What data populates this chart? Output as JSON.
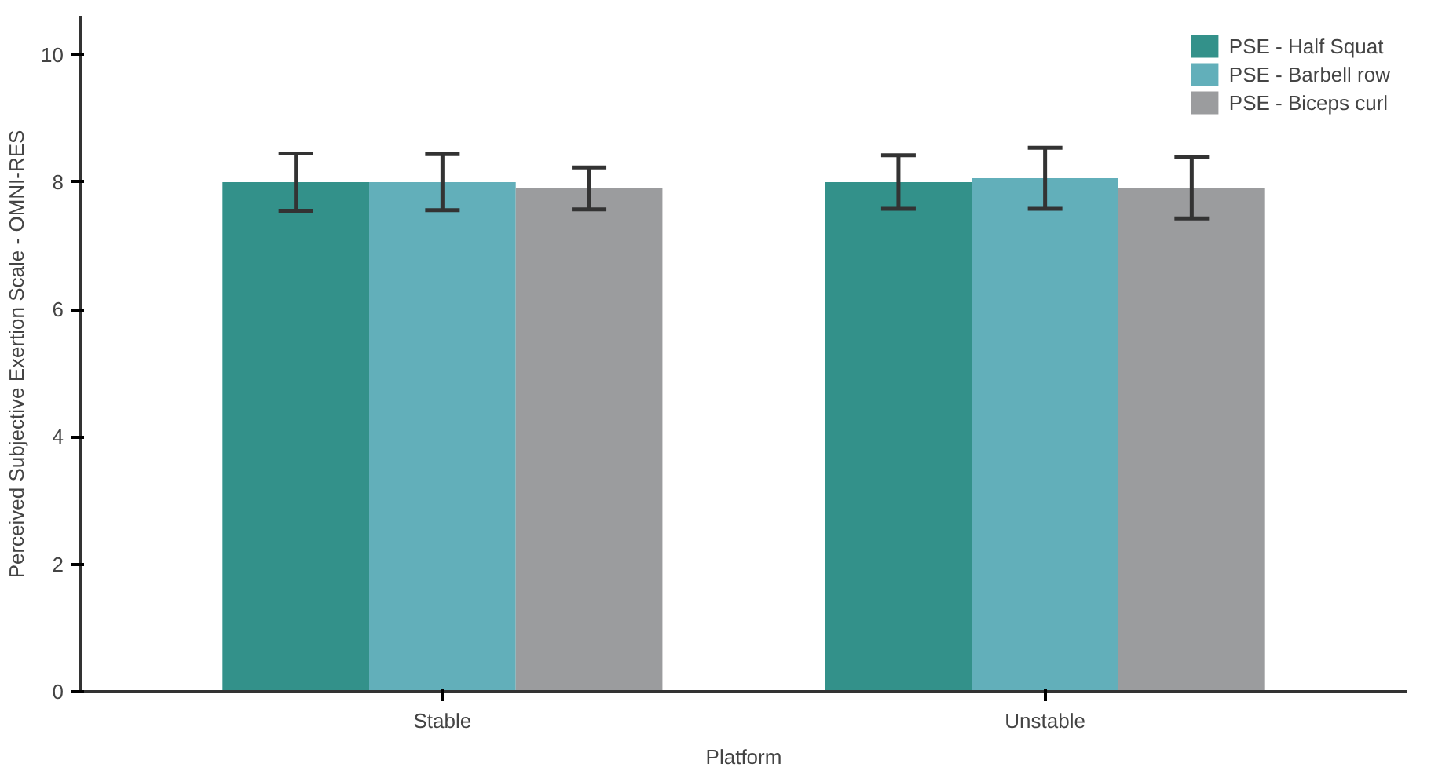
{
  "chart_data": {
    "type": "bar",
    "xlabel": "Platform",
    "ylabel": "Perceived Subjective Exertion Scale - OMNI-RES",
    "categories": [
      "Stable",
      "Unstable"
    ],
    "series": [
      {
        "name": "PSE - Half Squat",
        "color": "#33918a",
        "values": [
          8.0,
          8.0
        ],
        "errors": [
          0.45,
          0.42
        ]
      },
      {
        "name": "PSE - Barbell row",
        "color": "#62afba",
        "values": [
          8.0,
          8.06
        ],
        "errors": [
          0.44,
          0.48
        ]
      },
      {
        "name": "PSE - Biceps curl",
        "color": "#9b9c9e",
        "values": [
          7.9,
          7.91
        ],
        "errors": [
          0.33,
          0.48
        ]
      }
    ],
    "ylim": [
      0,
      10.6
    ],
    "yticks": [
      0,
      2,
      4,
      6,
      8,
      10
    ],
    "grid": false,
    "legend": "top right"
  }
}
